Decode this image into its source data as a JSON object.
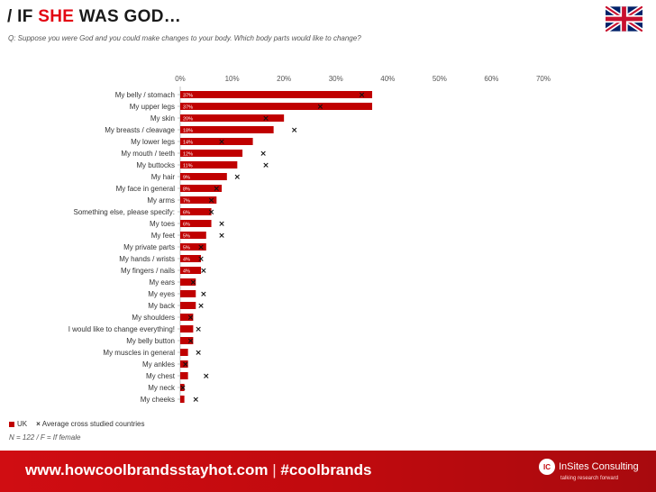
{
  "header": {
    "prefix": "/ IF ",
    "accent": "SHE",
    "suffix": " WAS GOD…",
    "question": "Q: Suppose you were God and you could make changes to your body. Which body parts would like to change?"
  },
  "chart_data": {
    "type": "bar",
    "orientation": "horizontal",
    "xlim": [
      0,
      70
    ],
    "ticks": [
      "0%",
      "10%",
      "20%",
      "30%",
      "40%",
      "50%",
      "60%",
      "70%"
    ],
    "tick_values": [
      0,
      10,
      20,
      30,
      40,
      50,
      60,
      70
    ],
    "categories": [
      "My belly / stomach",
      "My upper legs",
      "My skin",
      "My breasts / cleavage",
      "My lower legs",
      "My mouth / teeth",
      "My buttocks",
      "My hair",
      "My face in general",
      "My arms",
      "Something else, please specify:",
      "My toes",
      "My feet",
      "My private parts",
      "My hands / wrists",
      "My fingers / nails",
      "My ears",
      "My eyes",
      "My back",
      "My shoulders",
      "I would like to change everything!",
      "My belly button",
      "My muscles in general",
      "My ankles",
      "My chest",
      "My neck",
      "My cheeks"
    ],
    "series": [
      {
        "name": "UK",
        "color": "#c00000",
        "values": [
          37,
          37,
          20,
          18,
          14,
          12,
          11,
          9,
          8,
          7,
          6,
          6,
          5,
          5,
          4,
          4,
          3,
          3,
          3,
          2.5,
          2.5,
          2.5,
          1.5,
          1.5,
          1.5,
          0.8,
          0.8
        ],
        "labels": [
          "37%",
          "37%",
          "20%",
          "18%",
          "14%",
          "12%",
          "11%",
          "9%",
          "8%",
          "7%",
          "6%",
          "6%",
          "5%",
          "5%",
          "4%",
          "4%",
          "",
          "",
          "",
          "",
          "",
          "",
          "",
          "",
          "",
          "",
          ""
        ]
      },
      {
        "name": "Average cross studied countries",
        "marker": "x",
        "values": [
          35,
          27,
          16.5,
          22,
          8,
          16,
          16.5,
          11,
          7,
          6,
          6,
          8,
          8,
          4,
          4,
          4.5,
          2.5,
          4.5,
          4,
          2,
          3.5,
          2,
          3.5,
          1,
          5,
          0.5,
          3
        ]
      }
    ]
  },
  "legend": {
    "uk": "UK",
    "avg": "Average cross studied countries"
  },
  "note": "N = 122 / F = If female",
  "footer": {
    "url": "www.howcoolbrandsstayhot.com",
    "sep": "|",
    "hashtag": "#coolbrands",
    "brand_name": "InSites Consulting",
    "brand_tagline": "talking research forward",
    "brand_mark": "IC"
  },
  "colors": {
    "accent": "#e30613",
    "bar": "#c00000",
    "footer": "#c30a0f"
  }
}
